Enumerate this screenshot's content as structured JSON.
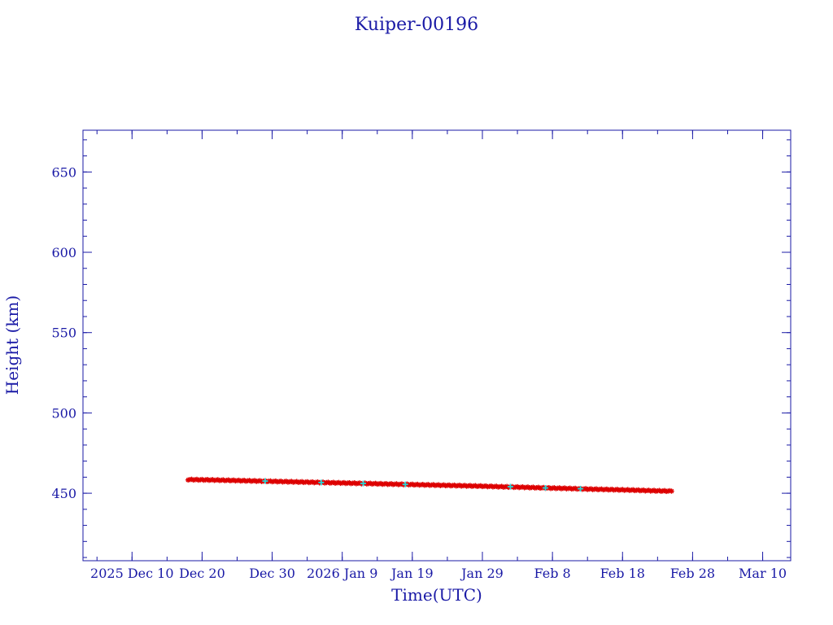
{
  "chart_data": {
    "type": "scatter",
    "title": "Kuiper-00196",
    "xlabel": "Time(UTC)",
    "ylabel": "Height (km)",
    "x_axis_type": "date",
    "xlim": [
      "2025-12-03",
      "2026-03-14"
    ],
    "ylim": [
      408,
      676
    ],
    "x_ticks": [
      {
        "date": "2025-12-10",
        "label": "2025 Dec 10"
      },
      {
        "date": "2025-12-20",
        "label": "Dec 20"
      },
      {
        "date": "2025-12-30",
        "label": "Dec 30"
      },
      {
        "date": "2026-01-09",
        "label": "2026 Jan  9"
      },
      {
        "date": "2026-01-19",
        "label": "Jan 19"
      },
      {
        "date": "2026-01-29",
        "label": "Jan 29"
      },
      {
        "date": "2026-02-08",
        "label": "Feb  8"
      },
      {
        "date": "2026-02-18",
        "label": "Feb 18"
      },
      {
        "date": "2026-02-28",
        "label": "Feb 28"
      },
      {
        "date": "2026-03-10",
        "label": "Mar 10"
      }
    ],
    "y_ticks": [
      450,
      500,
      550,
      600,
      650
    ],
    "y_minor_step": 10,
    "x_minor_step_days": 5,
    "grid": false,
    "legend": "none",
    "series": [
      {
        "color": "#dd0000",
        "marker": "star",
        "x": [
          "2025-12-18",
          "2025-12-21",
          "2025-12-24",
          "2025-12-27",
          "2025-12-30",
          "2026-01-02",
          "2026-01-05",
          "2026-01-08",
          "2026-01-11",
          "2026-01-14",
          "2026-01-17",
          "2026-01-20",
          "2026-01-23",
          "2026-01-26",
          "2026-01-29",
          "2026-02-01",
          "2026-02-04",
          "2026-02-07",
          "2026-02-10",
          "2026-02-13",
          "2026-02-16",
          "2026-02-19",
          "2026-02-22",
          "2026-02-25"
        ],
        "y": [
          458.5,
          458.3,
          458.0,
          457.7,
          457.4,
          457.1,
          456.8,
          456.5,
          456.2,
          455.9,
          455.6,
          455.3,
          455.0,
          454.7,
          454.4,
          454.0,
          453.7,
          453.3,
          453.0,
          452.6,
          452.3,
          452.0,
          451.6,
          451.3
        ]
      },
      {
        "color": "#2ad4d4",
        "marker": "cross",
        "x": [
          "2025-12-29",
          "2026-01-06",
          "2026-01-12",
          "2026-01-18",
          "2026-02-02",
          "2026-02-07",
          "2026-02-12"
        ],
        "y": [
          457.6,
          456.7,
          456.1,
          455.5,
          454.1,
          453.3,
          452.8
        ]
      }
    ]
  }
}
